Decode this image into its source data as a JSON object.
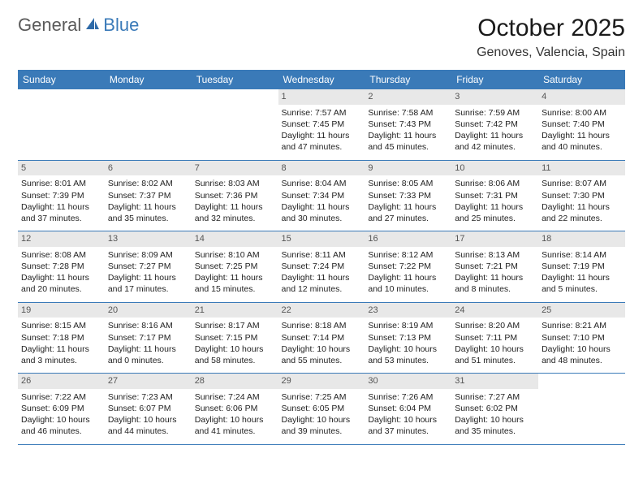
{
  "logo": {
    "part1": "General",
    "part2": "Blue"
  },
  "title": "October 2025",
  "location": "Genoves, Valencia, Spain",
  "colors": {
    "header_bg": "#3a7ab8",
    "header_text": "#ffffff",
    "daynum_bg": "#e8e8e8",
    "border": "#3a7ab8",
    "logo_gray": "#5a5a5a",
    "logo_blue": "#3a7ab8"
  },
  "weekdays": [
    "Sunday",
    "Monday",
    "Tuesday",
    "Wednesday",
    "Thursday",
    "Friday",
    "Saturday"
  ],
  "weeks": [
    [
      null,
      null,
      null,
      {
        "d": "1",
        "sr": "7:57 AM",
        "ss": "7:45 PM",
        "dl": "11 hours and 47 minutes."
      },
      {
        "d": "2",
        "sr": "7:58 AM",
        "ss": "7:43 PM",
        "dl": "11 hours and 45 minutes."
      },
      {
        "d": "3",
        "sr": "7:59 AM",
        "ss": "7:42 PM",
        "dl": "11 hours and 42 minutes."
      },
      {
        "d": "4",
        "sr": "8:00 AM",
        "ss": "7:40 PM",
        "dl": "11 hours and 40 minutes."
      }
    ],
    [
      {
        "d": "5",
        "sr": "8:01 AM",
        "ss": "7:39 PM",
        "dl": "11 hours and 37 minutes."
      },
      {
        "d": "6",
        "sr": "8:02 AM",
        "ss": "7:37 PM",
        "dl": "11 hours and 35 minutes."
      },
      {
        "d": "7",
        "sr": "8:03 AM",
        "ss": "7:36 PM",
        "dl": "11 hours and 32 minutes."
      },
      {
        "d": "8",
        "sr": "8:04 AM",
        "ss": "7:34 PM",
        "dl": "11 hours and 30 minutes."
      },
      {
        "d": "9",
        "sr": "8:05 AM",
        "ss": "7:33 PM",
        "dl": "11 hours and 27 minutes."
      },
      {
        "d": "10",
        "sr": "8:06 AM",
        "ss": "7:31 PM",
        "dl": "11 hours and 25 minutes."
      },
      {
        "d": "11",
        "sr": "8:07 AM",
        "ss": "7:30 PM",
        "dl": "11 hours and 22 minutes."
      }
    ],
    [
      {
        "d": "12",
        "sr": "8:08 AM",
        "ss": "7:28 PM",
        "dl": "11 hours and 20 minutes."
      },
      {
        "d": "13",
        "sr": "8:09 AM",
        "ss": "7:27 PM",
        "dl": "11 hours and 17 minutes."
      },
      {
        "d": "14",
        "sr": "8:10 AM",
        "ss": "7:25 PM",
        "dl": "11 hours and 15 minutes."
      },
      {
        "d": "15",
        "sr": "8:11 AM",
        "ss": "7:24 PM",
        "dl": "11 hours and 12 minutes."
      },
      {
        "d": "16",
        "sr": "8:12 AM",
        "ss": "7:22 PM",
        "dl": "11 hours and 10 minutes."
      },
      {
        "d": "17",
        "sr": "8:13 AM",
        "ss": "7:21 PM",
        "dl": "11 hours and 8 minutes."
      },
      {
        "d": "18",
        "sr": "8:14 AM",
        "ss": "7:19 PM",
        "dl": "11 hours and 5 minutes."
      }
    ],
    [
      {
        "d": "19",
        "sr": "8:15 AM",
        "ss": "7:18 PM",
        "dl": "11 hours and 3 minutes."
      },
      {
        "d": "20",
        "sr": "8:16 AM",
        "ss": "7:17 PM",
        "dl": "11 hours and 0 minutes."
      },
      {
        "d": "21",
        "sr": "8:17 AM",
        "ss": "7:15 PM",
        "dl": "10 hours and 58 minutes."
      },
      {
        "d": "22",
        "sr": "8:18 AM",
        "ss": "7:14 PM",
        "dl": "10 hours and 55 minutes."
      },
      {
        "d": "23",
        "sr": "8:19 AM",
        "ss": "7:13 PM",
        "dl": "10 hours and 53 minutes."
      },
      {
        "d": "24",
        "sr": "8:20 AM",
        "ss": "7:11 PM",
        "dl": "10 hours and 51 minutes."
      },
      {
        "d": "25",
        "sr": "8:21 AM",
        "ss": "7:10 PM",
        "dl": "10 hours and 48 minutes."
      }
    ],
    [
      {
        "d": "26",
        "sr": "7:22 AM",
        "ss": "6:09 PM",
        "dl": "10 hours and 46 minutes."
      },
      {
        "d": "27",
        "sr": "7:23 AM",
        "ss": "6:07 PM",
        "dl": "10 hours and 44 minutes."
      },
      {
        "d": "28",
        "sr": "7:24 AM",
        "ss": "6:06 PM",
        "dl": "10 hours and 41 minutes."
      },
      {
        "d": "29",
        "sr": "7:25 AM",
        "ss": "6:05 PM",
        "dl": "10 hours and 39 minutes."
      },
      {
        "d": "30",
        "sr": "7:26 AM",
        "ss": "6:04 PM",
        "dl": "10 hours and 37 minutes."
      },
      {
        "d": "31",
        "sr": "7:27 AM",
        "ss": "6:02 PM",
        "dl": "10 hours and 35 minutes."
      },
      null
    ]
  ],
  "labels": {
    "sunrise": "Sunrise: ",
    "sunset": "Sunset: ",
    "daylight": "Daylight: "
  }
}
